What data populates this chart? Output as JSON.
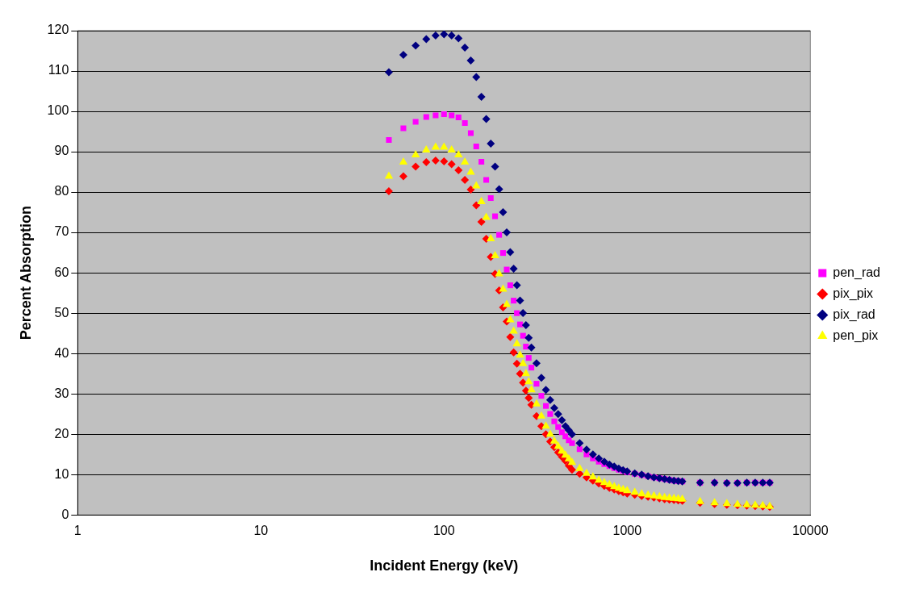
{
  "chart_data": {
    "type": "scatter",
    "xlabel": "Incident Energy (keV)",
    "ylabel": "Percent Absorption",
    "x": [
      50,
      60,
      70,
      80,
      90,
      100,
      110,
      120,
      130,
      140,
      150,
      160,
      170,
      180,
      190,
      200,
      210,
      220,
      230,
      240,
      250,
      260,
      270,
      280,
      290,
      300,
      320,
      340,
      360,
      380,
      400,
      420,
      440,
      460,
      480,
      500,
      550,
      600,
      650,
      700,
      750,
      800,
      850,
      900,
      950,
      1000,
      1100,
      1200,
      1300,
      1400,
      1500,
      1600,
      1700,
      1800,
      1900,
      2000,
      2500,
      3000,
      3500,
      4000,
      4500,
      5000,
      5500,
      6000
    ],
    "series": [
      {
        "name": "pen_rad",
        "color": "#ff00ff",
        "marker": "square",
        "values": [
          92.9,
          95.8,
          97.4,
          98.6,
          99,
          99.3,
          99,
          98.5,
          97.1,
          94.6,
          91.3,
          87.5,
          83,
          78.5,
          74,
          69.4,
          64.9,
          60.8,
          56.9,
          53.1,
          50,
          47.2,
          44.4,
          41.7,
          38.9,
          36.5,
          32.5,
          29.5,
          27,
          25,
          23.2,
          21.8,
          20.5,
          19.5,
          18.5,
          17.8,
          16.3,
          15,
          14,
          13.2,
          12.6,
          12.1,
          11.6,
          11.2,
          10.9,
          10.6,
          10.2,
          9.9,
          9.6,
          9.3,
          9.1,
          8.9,
          8.7,
          8.5,
          8.4,
          8.3,
          8,
          8,
          7.9,
          7.9,
          8,
          8,
          8,
          8
        ]
      },
      {
        "name": "pix_pix",
        "color": "#ff0000",
        "marker": "diamond",
        "values": [
          80.2,
          83.9,
          86.3,
          87.4,
          87.8,
          87.6,
          86.9,
          85.4,
          83,
          80.6,
          76.7,
          72.6,
          68.4,
          63.9,
          59.7,
          55.6,
          51.4,
          47.9,
          44.1,
          40.3,
          37.5,
          35,
          32.8,
          30.8,
          29,
          27.3,
          24.5,
          22,
          20,
          18.2,
          16.8,
          15.5,
          14.4,
          13.4,
          12.2,
          11.2,
          10.2,
          9.3,
          8.5,
          7.8,
          7.2,
          6.7,
          6.3,
          5.9,
          5.6,
          5.3,
          5,
          4.7,
          4.5,
          4.3,
          4.1,
          3.9,
          3.8,
          3.7,
          3.6,
          3.5,
          3,
          2.7,
          2.5,
          2.4,
          2.3,
          2.2,
          2.1,
          2
        ]
      },
      {
        "name": "pix_rad",
        "color": "#000080",
        "marker": "diamond",
        "values": [
          109.7,
          114,
          116.3,
          117.9,
          118.8,
          119.1,
          118.8,
          118.1,
          115.8,
          112.6,
          108.5,
          103.6,
          98.1,
          92,
          86.3,
          80.7,
          75,
          70,
          65.1,
          61,
          56.9,
          53.1,
          50,
          47,
          43.9,
          41.5,
          37.6,
          34,
          31,
          28.5,
          26.5,
          25,
          23.5,
          22,
          21,
          20,
          17.8,
          16.2,
          15,
          14,
          13.2,
          12.5,
          12,
          11.5,
          11.1,
          10.8,
          10.3,
          10,
          9.6,
          9.3,
          9.1,
          8.9,
          8.7,
          8.5,
          8.4,
          8.3,
          8,
          8,
          7.9,
          7.9,
          8,
          8,
          8,
          8
        ]
      },
      {
        "name": "pen_pix",
        "color": "#ffff00",
        "marker": "triangle",
        "values": [
          83.9,
          87.4,
          89.2,
          90.4,
          91.1,
          91.1,
          90.4,
          89.2,
          87.4,
          84.9,
          81.5,
          77.6,
          73.7,
          68.4,
          64.2,
          59.7,
          55.9,
          52.1,
          48.3,
          45.5,
          42.4,
          39.6,
          37.5,
          35,
          33,
          31,
          27.5,
          24.5,
          22,
          20,
          18.3,
          17,
          15.8,
          14.8,
          13.9,
          13,
          11.5,
          10.3,
          9.4,
          8.6,
          8,
          7.5,
          7,
          6.6,
          6.3,
          6,
          5.6,
          5.2,
          4.9,
          4.7,
          4.5,
          4.3,
          4.2,
          4.1,
          4,
          3.9,
          3.3,
          3,
          2.8,
          2.6,
          2.5,
          2.4,
          2.3,
          2.1
        ]
      }
    ],
    "log": "x",
    "xlim": [
      1,
      10000
    ],
    "xticks": [
      1,
      10,
      100,
      1000,
      10000
    ],
    "ylim": [
      0,
      120
    ],
    "yticks": [
      0,
      10,
      20,
      30,
      40,
      50,
      60,
      70,
      80,
      90,
      100,
      110,
      120
    ],
    "grid": "y",
    "legend": "right"
  }
}
